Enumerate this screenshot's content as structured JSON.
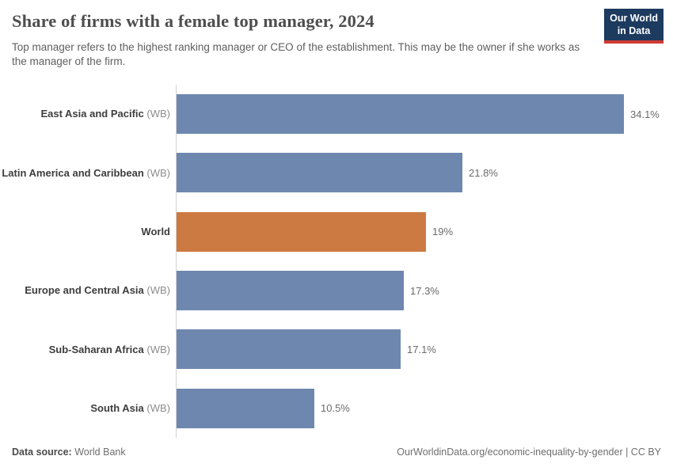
{
  "header": {
    "title": "Share of firms with a female top manager, 2024",
    "subtitle": "Top manager refers to the highest ranking manager or CEO of the establishment. This may be the owner if she works as the manager of the firm.",
    "logo": {
      "line1": "Our World",
      "line2": "in Data"
    }
  },
  "chart_data": {
    "type": "bar",
    "orientation": "horizontal",
    "title": "Share of firms with a female top manager, 2024",
    "subtitle": "Top manager refers to the highest ranking manager or CEO of the establishment. This may be the owner if she works as the manager of the firm.",
    "xlabel": "",
    "ylabel": "",
    "unit": "%",
    "xlim": [
      0,
      37
    ],
    "grid": false,
    "legend": false,
    "categories": [
      "East Asia and Pacific (WB)",
      "Latin America and Caribbean (WB)",
      "World",
      "Europe and Central Asia (WB)",
      "Sub-Saharan Africa (WB)",
      "South Asia (WB)"
    ],
    "values": [
      34.1,
      21.8,
      19,
      17.3,
      17.1,
      10.5
    ],
    "series": [
      {
        "label": "East Asia and Pacific",
        "suffix": "(WB)",
        "value": 34.1,
        "display": "34.1%",
        "color": "#6e87af"
      },
      {
        "label": "Latin America and Caribbean",
        "suffix": "(WB)",
        "value": 21.8,
        "display": "21.8%",
        "color": "#6e87af"
      },
      {
        "label": "World",
        "suffix": "",
        "value": 19,
        "display": "19%",
        "color": "#cd7a42"
      },
      {
        "label": "Europe and Central Asia",
        "suffix": "(WB)",
        "value": 17.3,
        "display": "17.3%",
        "color": "#6e87af"
      },
      {
        "label": "Sub-Saharan Africa",
        "suffix": "(WB)",
        "value": 17.1,
        "display": "17.1%",
        "color": "#6e87af"
      },
      {
        "label": "South Asia",
        "suffix": "(WB)",
        "value": 10.5,
        "display": "10.5%",
        "color": "#6e87af"
      }
    ],
    "colors": {
      "default_bar": "#6e87af",
      "highlight_bar": "#cd7a42"
    }
  },
  "footer": {
    "datasource_label": "Data source:",
    "datasource_value": "World Bank",
    "attribution": "OurWorldinData.org/economic-inequality-by-gender | CC BY"
  }
}
